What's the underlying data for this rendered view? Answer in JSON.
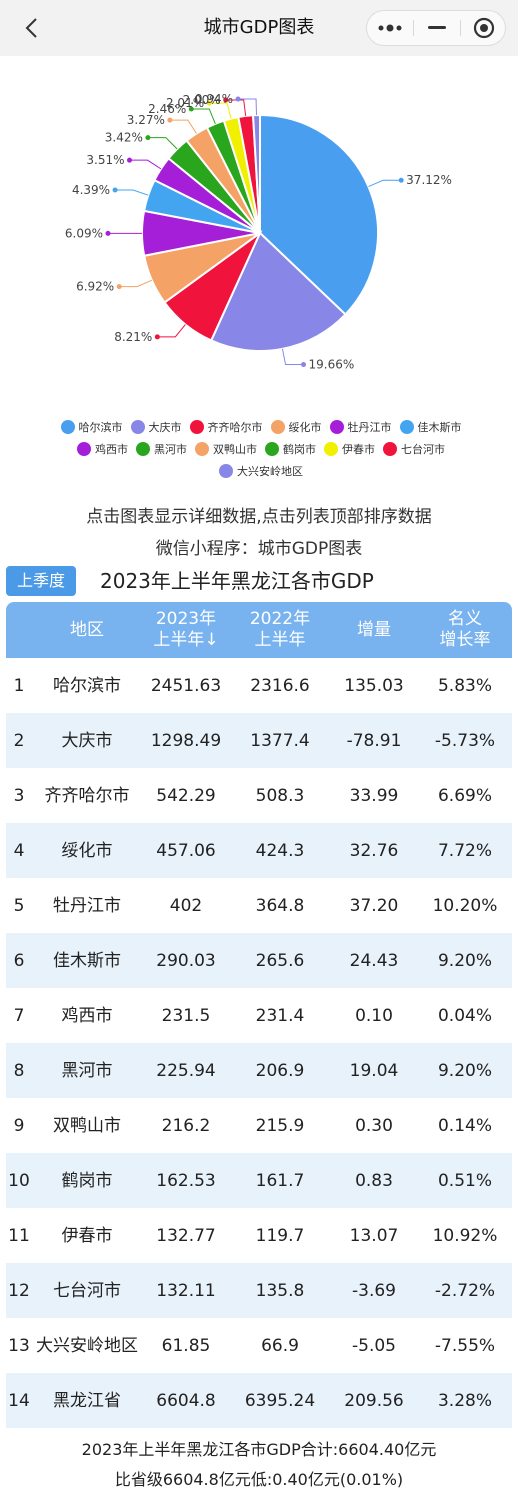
{
  "header": {
    "title": "城市GDP图表"
  },
  "chart_data": {
    "type": "pie",
    "title": "",
    "categories": [
      "哈尔滨市",
      "大庆市",
      "齐齐哈尔市",
      "绥化市",
      "牡丹江市",
      "佳木斯市",
      "鸡西市",
      "黑河市",
      "双鸭山市",
      "鹤岗市",
      "伊春市",
      "七台河市",
      "大兴安岭地区"
    ],
    "values": [
      37.12,
      19.66,
      8.21,
      6.92,
      6.09,
      4.39,
      3.51,
      3.42,
      3.27,
      2.46,
      2.01,
      2.0,
      0.94
    ],
    "labels": [
      "37.12%",
      "19.66%",
      "8.21%",
      "6.92%",
      "6.09%",
      "4.39%",
      "3.51%",
      "3.42%",
      "3.27%",
      "2.46%",
      "2.01%",
      "2.00%",
      "0.94%"
    ],
    "colors": [
      "#4a9ef0",
      "#8887e8",
      "#f0143c",
      "#f4a266",
      "#a51fd8",
      "#43a5f0",
      "#a51fd8",
      "#2aa51e",
      "#f4a266",
      "#2aa51e",
      "#f0f000",
      "#f0143c",
      "#8887e8"
    ],
    "legend_position": "bottom"
  },
  "legend": {
    "rows": [
      [
        0,
        1,
        2,
        3,
        4,
        5
      ],
      [
        6,
        7,
        8,
        9,
        10,
        11
      ],
      [
        12
      ]
    ]
  },
  "hints": {
    "line1": "点击图表显示详细数据,点击列表顶部排序数据",
    "line2": "微信小程序：城市GDP图表"
  },
  "controls": {
    "season_button": "上季度"
  },
  "table": {
    "title": "2023年上半年黑龙江各市GDP",
    "headers": {
      "region": "地区",
      "y2023_line1": "2023年",
      "y2023_line2": "上半年",
      "sort_arrow": "↓",
      "y2022_line1": "2022年",
      "y2022_line2": "上半年",
      "increase": "增量",
      "rate_line1": "名义",
      "rate_line2": "增长率"
    },
    "rows": [
      {
        "idx": "1",
        "name": "哈尔滨市",
        "y2023": "2451.63",
        "y2022": "2316.6",
        "inc": "135.03",
        "rate": "5.83%"
      },
      {
        "idx": "2",
        "name": "大庆市",
        "y2023": "1298.49",
        "y2022": "1377.4",
        "inc": "-78.91",
        "rate": "-5.73%"
      },
      {
        "idx": "3",
        "name": "齐齐哈尔市",
        "y2023": "542.29",
        "y2022": "508.3",
        "inc": "33.99",
        "rate": "6.69%"
      },
      {
        "idx": "4",
        "name": "绥化市",
        "y2023": "457.06",
        "y2022": "424.3",
        "inc": "32.76",
        "rate": "7.72%"
      },
      {
        "idx": "5",
        "name": "牡丹江市",
        "y2023": "402",
        "y2022": "364.8",
        "inc": "37.20",
        "rate": "10.20%"
      },
      {
        "idx": "6",
        "name": "佳木斯市",
        "y2023": "290.03",
        "y2022": "265.6",
        "inc": "24.43",
        "rate": "9.20%"
      },
      {
        "idx": "7",
        "name": "鸡西市",
        "y2023": "231.5",
        "y2022": "231.4",
        "inc": "0.10",
        "rate": "0.04%"
      },
      {
        "idx": "8",
        "name": "黑河市",
        "y2023": "225.94",
        "y2022": "206.9",
        "inc": "19.04",
        "rate": "9.20%"
      },
      {
        "idx": "9",
        "name": "双鸭山市",
        "y2023": "216.2",
        "y2022": "215.9",
        "inc": "0.30",
        "rate": "0.14%"
      },
      {
        "idx": "10",
        "name": "鹤岗市",
        "y2023": "162.53",
        "y2022": "161.7",
        "inc": "0.83",
        "rate": "0.51%"
      },
      {
        "idx": "11",
        "name": "伊春市",
        "y2023": "132.77",
        "y2022": "119.7",
        "inc": "13.07",
        "rate": "10.92%"
      },
      {
        "idx": "12",
        "name": "七台河市",
        "y2023": "132.11",
        "y2022": "135.8",
        "inc": "-3.69",
        "rate": "-2.72%"
      },
      {
        "idx": "13",
        "name": "大兴安岭地区",
        "y2023": "61.85",
        "y2022": "66.9",
        "inc": "-5.05",
        "rate": "-7.55%"
      },
      {
        "idx": "14",
        "name": "黑龙江省",
        "y2023": "6604.8",
        "y2022": "6395.24",
        "inc": "209.56",
        "rate": "3.28%"
      }
    ]
  },
  "footer": {
    "line1": "2023年上半年黑龙江各市GDP合计:6604.40亿元",
    "line2": "比省级6604.8亿元低:0.40亿元(0.01%)"
  }
}
